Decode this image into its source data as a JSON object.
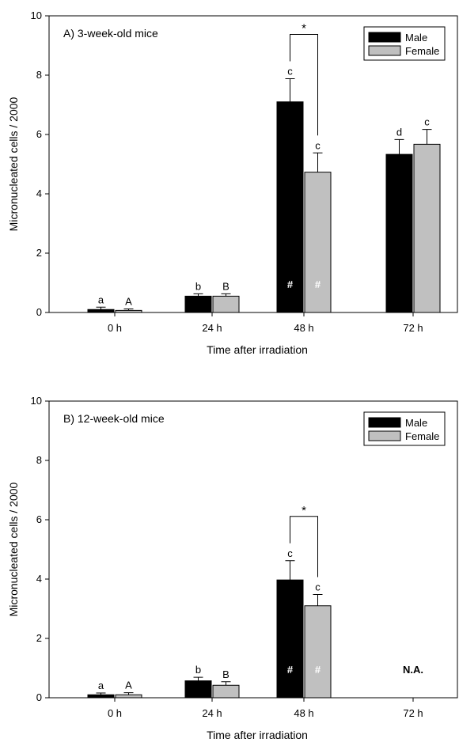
{
  "chart_data": [
    {
      "type": "bar",
      "title": "A) 3-week-old mice",
      "xlabel": "Time after irradiation",
      "ylabel": "Micronucleated cells / 2000",
      "ylim": [
        0,
        10
      ],
      "yticks": [
        "0",
        "2",
        "4",
        "6",
        "8",
        "10"
      ],
      "categories": [
        "0 h",
        "24 h",
        "48 h",
        "72 h"
      ],
      "legend_position": "top-right",
      "series": [
        {
          "name": "Male",
          "color": "#000000",
          "values": [
            0.1,
            0.55,
            7.1,
            5.33
          ],
          "errors": [
            0.08,
            0.08,
            0.78,
            0.5
          ],
          "letters": [
            "a",
            "b",
            "c",
            "d"
          ],
          "hash": [
            "",
            "",
            "#",
            ""
          ]
        },
        {
          "name": "Female",
          "color": "#c0c0c0",
          "values": [
            0.07,
            0.55,
            4.73,
            5.67
          ],
          "errors": [
            0.05,
            0.08,
            0.65,
            0.5
          ],
          "letters": [
            "A",
            "B",
            "c",
            "c"
          ],
          "hash": [
            "",
            "",
            "#",
            ""
          ]
        }
      ],
      "significance": [
        {
          "category": "48 h",
          "label": "*"
        }
      ],
      "na_labels": []
    },
    {
      "type": "bar",
      "title": "B) 12-week-old mice",
      "xlabel": "Time after irradiation",
      "ylabel": "Micronucleated cells / 2000",
      "ylim": [
        0,
        10
      ],
      "yticks": [
        "0",
        "2",
        "4",
        "6",
        "8",
        "10"
      ],
      "categories": [
        "0 h",
        "24 h",
        "48 h",
        "72 h"
      ],
      "legend_position": "top-right",
      "series": [
        {
          "name": "Male",
          "color": "#000000",
          "values": [
            0.1,
            0.57,
            3.97,
            null
          ],
          "errors": [
            0.06,
            0.12,
            0.65,
            null
          ],
          "letters": [
            "a",
            "b",
            "c",
            ""
          ],
          "hash": [
            "",
            "",
            "#",
            ""
          ]
        },
        {
          "name": "Female",
          "color": "#c0c0c0",
          "values": [
            0.1,
            0.42,
            3.1,
            null
          ],
          "errors": [
            0.07,
            0.12,
            0.38,
            null
          ],
          "letters": [
            "A",
            "B",
            "c",
            ""
          ],
          "hash": [
            "",
            "",
            "#",
            ""
          ]
        }
      ],
      "significance": [
        {
          "category": "48 h",
          "label": "*"
        }
      ],
      "na_labels": [
        {
          "category": "72 h",
          "label": "N.A."
        }
      ]
    }
  ]
}
